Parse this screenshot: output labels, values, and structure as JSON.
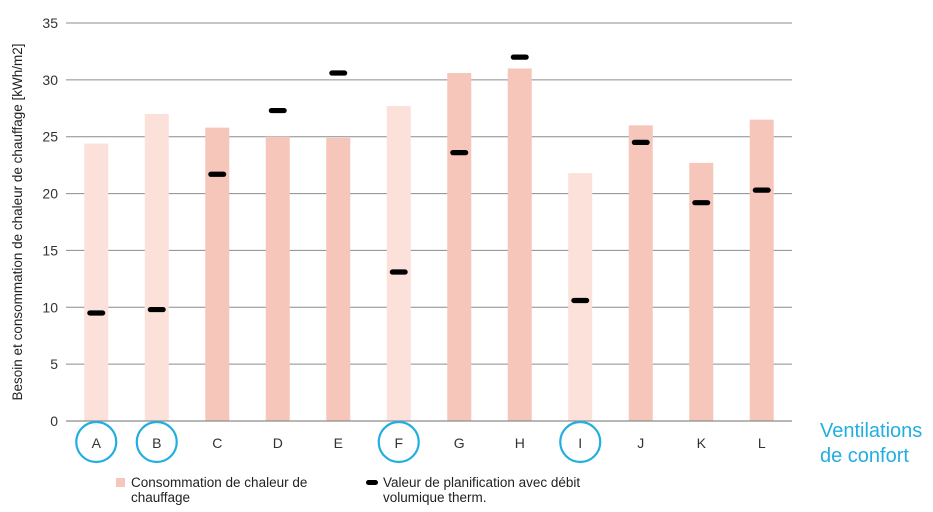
{
  "colors": {
    "bar_light": "#fbe1da",
    "bar_dark": "#f6c6ba",
    "planning_marker": "#000000",
    "highlight": "#22aee0",
    "grid": "#8c8c8c"
  },
  "chart_data": {
    "type": "bar",
    "ylabel": "Besoin et consommation de chaleur de chauffage [kWh/m2]",
    "xlabel": "",
    "ylim": [
      0,
      35
    ],
    "yticks": [
      "0",
      "5",
      "10",
      "15",
      "20",
      "25",
      "30",
      "35"
    ],
    "ytick_values": [
      0,
      5,
      10,
      15,
      20,
      25,
      30,
      35
    ],
    "grid": "horizontal",
    "legend_position": "bottom",
    "categories": [
      "A",
      "B",
      "C",
      "D",
      "E",
      "F",
      "G",
      "H",
      "I",
      "J",
      "K",
      "L"
    ],
    "series": [
      {
        "name": "Consommation de chaleur de chauffage",
        "kind": "bar",
        "values": [
          24.4,
          27.0,
          25.8,
          25.0,
          24.9,
          27.7,
          30.6,
          31.0,
          21.8,
          26.0,
          22.7,
          26.5
        ],
        "shade": [
          "light",
          "light",
          "dark",
          "dark",
          "dark",
          "light",
          "dark",
          "dark",
          "light",
          "dark",
          "dark",
          "dark"
        ]
      },
      {
        "name": "Valeur de planification avec débit volumique therm.",
        "kind": "marker",
        "values": [
          9.5,
          9.8,
          21.7,
          27.3,
          30.6,
          13.1,
          23.6,
          32.0,
          10.6,
          24.5,
          19.2,
          20.3
        ]
      }
    ],
    "highlighted_categories": [
      "A",
      "B",
      "F",
      "I"
    ],
    "annotation": [
      "Ventilations",
      "de confort"
    ]
  },
  "legend": {
    "bar_label": [
      "Consommation de chaleur de",
      "chauffage"
    ],
    "marker_label": [
      "Valeur de planification avec débit",
      "volumique therm."
    ]
  }
}
